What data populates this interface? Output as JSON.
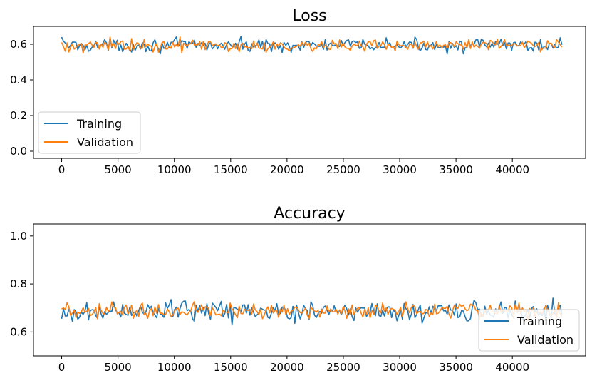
{
  "colors": {
    "training": "#1f77b4",
    "validation": "#ff7f0e"
  },
  "chart_data": [
    {
      "type": "line",
      "title": "Loss",
      "xlim": [
        -2500,
        46500
      ],
      "ylim": [
        -0.04,
        0.7
      ],
      "xticks": [
        0,
        5000,
        10000,
        15000,
        20000,
        25000,
        30000,
        35000,
        40000
      ],
      "yticks": [
        0.0,
        0.2,
        0.4,
        0.6
      ],
      "ytick_labels": [
        "0.0",
        "0.2",
        "0.4",
        "0.6"
      ],
      "legend": {
        "placement": "lower-left",
        "entries": [
          "Training",
          "Validation"
        ]
      },
      "series": [
        {
          "name": "Training",
          "x_range": [
            0,
            44400
          ],
          "mean": 0.594,
          "band": 0.018,
          "first": 0.64,
          "points": 280
        },
        {
          "name": "Validation",
          "x_range": [
            0,
            44400
          ],
          "mean": 0.593,
          "band": 0.017,
          "first": 0.61,
          "points": 280
        }
      ]
    },
    {
      "type": "line",
      "title": "Accuracy",
      "xlim": [
        -2500,
        46500
      ],
      "ylim": [
        0.5,
        1.05
      ],
      "xticks": [
        0,
        5000,
        10000,
        15000,
        20000,
        25000,
        30000,
        35000,
        40000
      ],
      "yticks": [
        0.6,
        0.8,
        1.0
      ],
      "ytick_labels": [
        "0.6",
        "0.8",
        "1.0"
      ],
      "legend": {
        "placement": "lower-right",
        "entries": [
          "Training",
          "Validation"
        ]
      },
      "series": [
        {
          "name": "Training",
          "x_range": [
            0,
            44400
          ],
          "mean": 0.687,
          "band": 0.02,
          "first": 0.655,
          "points": 280
        },
        {
          "name": "Validation",
          "x_range": [
            0,
            44400
          ],
          "mean": 0.688,
          "band": 0.016,
          "first": 0.695,
          "points": 280
        }
      ]
    }
  ]
}
